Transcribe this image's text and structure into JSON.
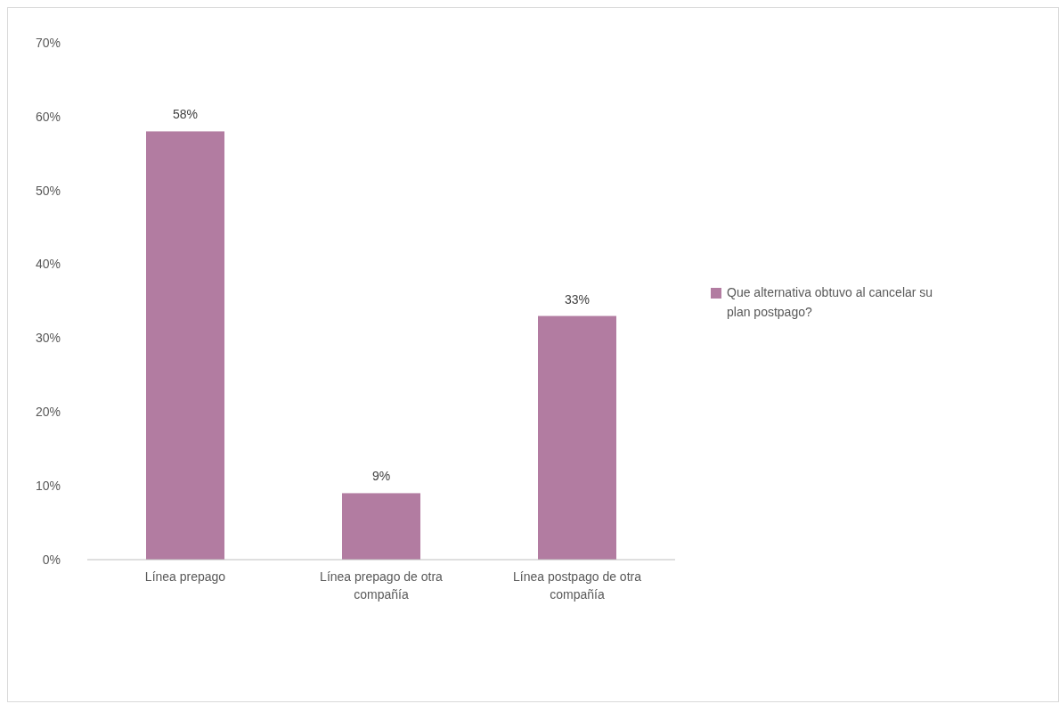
{
  "chart_data": {
    "type": "bar",
    "categories": [
      "Línea prepago",
      "Línea prepago de otra compañía",
      "Línea postpago de otra compañía"
    ],
    "series": [
      {
        "name": "Que alternativa obtuvo al cancelar su plan postpago?",
        "color": "#b27ca1",
        "values": [
          58,
          9,
          33
        ]
      }
    ],
    "ylim": [
      0,
      70
    ],
    "yticks": [
      {
        "value": 0,
        "label": "0%"
      },
      {
        "value": 10,
        "label": "10%"
      },
      {
        "value": 20,
        "label": "20%"
      },
      {
        "value": 30,
        "label": "30%"
      },
      {
        "value": 40,
        "label": "40%"
      },
      {
        "value": 50,
        "label": "50%"
      },
      {
        "value": 60,
        "label": "60%"
      },
      {
        "value": 70,
        "label": "70%"
      }
    ],
    "value_labels": [
      "58%",
      "9%",
      "33%"
    ],
    "grid": false,
    "legend": "right"
  }
}
